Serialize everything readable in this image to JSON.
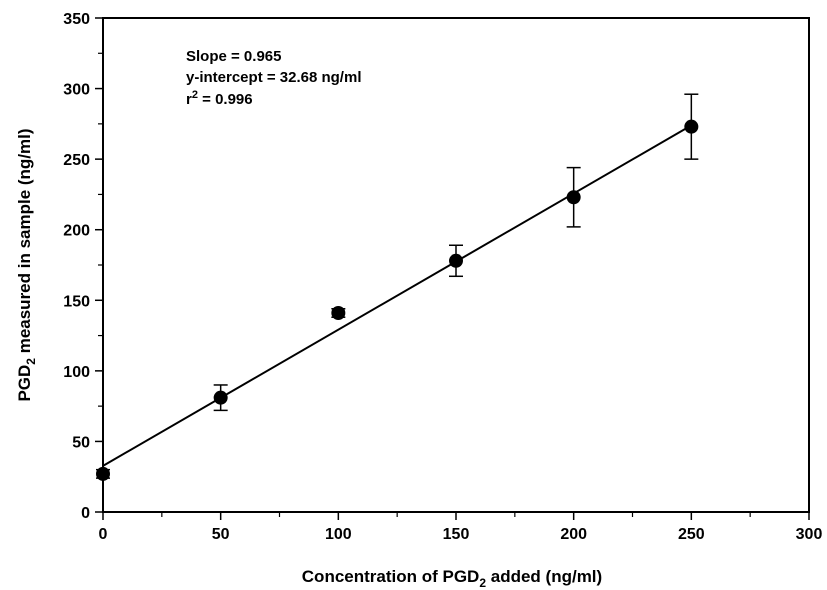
{
  "chart_data": {
    "type": "scatter",
    "title": "",
    "xlabel": {
      "pre": "Concentration of PGD",
      "sub": "2",
      "post": " added (ng/ml)"
    },
    "ylabel": {
      "pre": "PGD",
      "sub": "2",
      "post": " measured in sample (ng/ml)"
    },
    "xlim": [
      0,
      300
    ],
    "ylim": [
      0,
      350
    ],
    "x_ticks": [
      0,
      50,
      100,
      150,
      200,
      250,
      300
    ],
    "x_tick_labels": [
      "0",
      "50",
      "100",
      "150",
      "200",
      "250",
      "300"
    ],
    "y_ticks": [
      0,
      50,
      100,
      150,
      200,
      250,
      300,
      350
    ],
    "y_tick_labels": [
      "0",
      "50",
      "100",
      "150",
      "200",
      "250",
      "300",
      "350"
    ],
    "grid": false,
    "points": [
      {
        "x": 0,
        "y": 27,
        "err": 3
      },
      {
        "x": 50,
        "y": 81,
        "err": 9
      },
      {
        "x": 100,
        "y": 141,
        "err": 3
      },
      {
        "x": 150,
        "y": 178,
        "err": 11
      },
      {
        "x": 200,
        "y": 223,
        "err": 21
      },
      {
        "x": 250,
        "y": 273,
        "err": 23
      }
    ],
    "fit_line": {
      "slope": 0.965,
      "intercept": 32.68,
      "x_range": [
        0,
        250
      ]
    },
    "annotations": {
      "slope": "Slope = 0.965",
      "intercept": "y-intercept = 32.68 ng/ml",
      "r2_pre": "r",
      "r2_sup": "2",
      "r2_post": " = 0.996"
    },
    "colors": {
      "marker": "#000000",
      "line": "#000000"
    }
  }
}
